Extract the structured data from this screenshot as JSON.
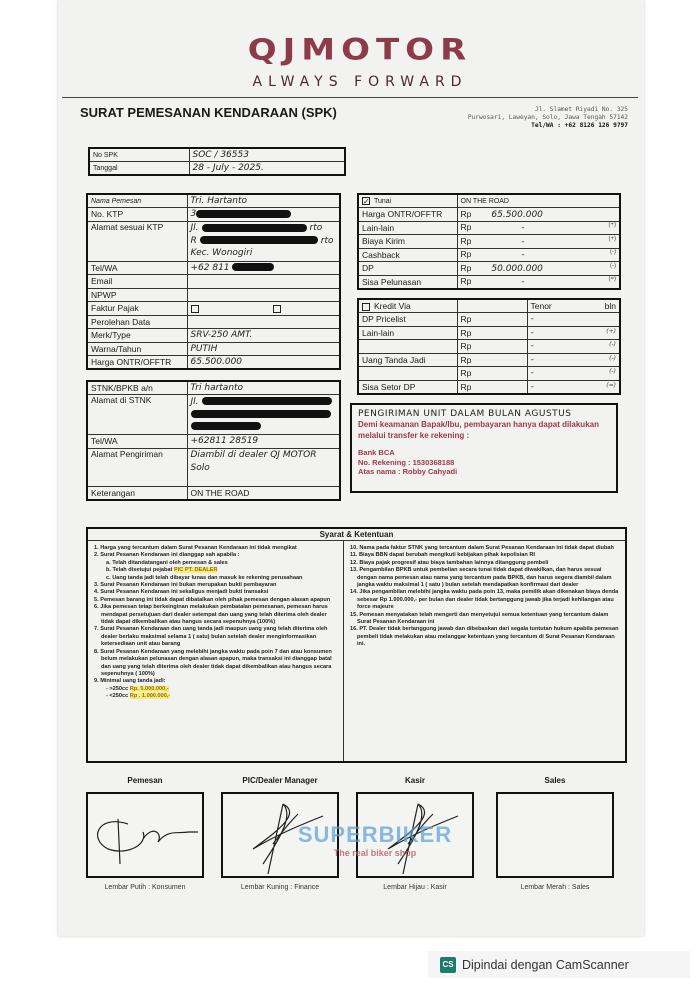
{
  "header": {
    "brand": "QJMOTOR",
    "tagline": "ALWAYS FORWARD",
    "title": "SURAT PEMESANAN KENDARAAN (SPK)",
    "address": [
      "Jl. Slamet Riyadi No. 325",
      "Purwosari, Laweyan, Solo, Jawa Tengah 57142",
      "Tel/WA : +62 8126 126 9797"
    ]
  },
  "spk": [
    {
      "label": "No SPK",
      "value": "SOC / 36553"
    },
    {
      "label": "Tanggal",
      "value": "28 - July - 2025."
    }
  ],
  "customer": {
    "name_label": "Nama Pemesan",
    "name": "Tri. Hartanto",
    "ktp_label": "No. KTP",
    "ktp": "3",
    "address_label": "Alamat sesuai KTP",
    "address": [
      "Jl.",
      "R",
      "Kec. Wonogiri"
    ],
    "address_tail": [
      "rto",
      "rto"
    ],
    "tel_label": "Tel/WA",
    "tel": "+62 811",
    "email_label": "Email",
    "npwp_label": "NPWP",
    "faktur_label": "Faktur Pajak",
    "perolehan_label": "Perolehan Data",
    "merk_label": "Merk/Type",
    "merk": "SRV-250 AMT.",
    "warna_label": "Warna/Tahun",
    "warna": "PUTIH",
    "harga_label": "Harga ONTR/OFFTR",
    "harga": "65.500.000"
  },
  "cash": {
    "checked": true,
    "label": "Tunai",
    "header": "ON THE ROAD",
    "rows": [
      {
        "label": "Harga ONTR/OFFTR",
        "cur": "Rp",
        "value": "65.500.000",
        "sign": ""
      },
      {
        "label": "Lain-lain",
        "cur": "Rp",
        "value": "-",
        "sign": "(+)"
      },
      {
        "label": "Biaya Kirim",
        "cur": "Rp",
        "value": "-",
        "sign": "(+)"
      },
      {
        "label": "Cashback",
        "cur": "Rp",
        "value": "-",
        "sign": "(-)"
      },
      {
        "label": "DP",
        "cur": "Rp",
        "value": "50.000.000",
        "sign": "(-)"
      },
      {
        "label": "Sisa Pelunasan",
        "cur": "Rp",
        "value": "-",
        "sign": "(=)"
      }
    ]
  },
  "credit": {
    "checked": false,
    "label": "Kredit Via",
    "tenor": "Tenor",
    "unit": "bln",
    "rows": [
      {
        "label": "DP Pricelist",
        "cur": "Rp",
        "value": "-",
        "sign": ""
      },
      {
        "label": "Lain-lain",
        "cur": "Rp",
        "value": "-",
        "sign": "(+)"
      },
      {
        "label": "",
        "cur": "Rp",
        "value": "-",
        "sign": "(-)"
      },
      {
        "label": "Uang Tanda Jadi",
        "cur": "Rp",
        "value": "-",
        "sign": "(-)"
      },
      {
        "label": "",
        "cur": "Rp",
        "value": "-",
        "sign": "(-)"
      },
      {
        "label": "Sisa Setor DP",
        "cur": "Rp",
        "value": "-",
        "sign": "(=)"
      }
    ]
  },
  "stnk": {
    "name_label": "STNK/BPKB a/n",
    "name": "Tri hartanto",
    "address_label": "Alamat di STNK",
    "address": "Jl.",
    "tel_label": "Tel/WA",
    "tel": "+62811 28519",
    "delivery_label": "Alamat Pengiriman",
    "delivery": [
      "Diambil di dealer QJ MOTOR",
      "Solo"
    ],
    "note_label": "Keterangan",
    "note": "ON THE ROAD"
  },
  "notice": {
    "handwritten": "PENGIRIMAN UNIT DALAM BULAN AGUSTUS",
    "message": "Demi keamanan Bapak/Ibu, pembayaran hanya dapat dilakukan melalui transfer ke rekening :",
    "bank": "Bank BCA",
    "account": "No. Rekening : 1530368188",
    "holder": "Atas nama : Robby Cahyadi"
  },
  "terms": {
    "title": "Syarat & Ketentuan",
    "left": [
      {
        "t": "1. Harga yang tercantum dalam Surat Pesanan Kendaraan ini tidak mengikat"
      },
      {
        "t": "2. Surat Pesanan Kendaraan ini dianggap sah apabila :"
      },
      {
        "s": "a. Telah ditandatangani oleh pemesan & sales"
      },
      {
        "s": "b. Telah disetujui pejabat ",
        "h": "PIC PT. DEALER"
      },
      {
        "s": "c. Uang tanda jadi telah dibayar lunas dan masuk ke rekening perusahaan"
      },
      {
        "t": "3. Surat Pesanan Kendaraan ini bukan merupakan bukti pembayaran"
      },
      {
        "t": "4. Surat Pesanan Kendaraan ini sekaligus menjadi bukti transaksi"
      },
      {
        "t": "5. Pemesan barang ini tidak dapat dibatalkan oleh pihak pemesan dengan alasan apapun"
      },
      {
        "t": "6. Jika pemesan tetap berkeinginan melakukan pembatalan pemesanan, pemesan harus mendapat persetujuan dari dealer setempat dan uang yang telah diterima oleh dealer tidak dapat dikembalikan atau hangus secara sepenuhnya (100%)"
      },
      {
        "t": "7. Surat Pesanan Kendaraan dan uang tanda jadi maupun uang yang telah diterima oleh dealer berlaku maksimal selama 1 ( satu) bulan setelah dealer menginformasikan ketersediaan unit atau barang"
      },
      {
        "t": "8. Surat Pesanan Kendaraan yang melebihi jangka waktu pada poin 7 dan atau konsumen belum melakukan pelunasan dengan alasan apapun, maka transaksi ini dianggap batal dan uang yang telah diterima oleh dealer tidak dapat dikembalikan atau hangus secara sepenuhnya ( 100%)"
      },
      {
        "t": "9. Minimal uang tanda jadi:"
      },
      {
        "s": "- >250cc ",
        "h": "Rp. 5.000.000,-"
      },
      {
        "s": "- <250cc ",
        "h": "Rp . 1.000.000,-"
      }
    ],
    "right": [
      {
        "t": "10. Nama pada faktur STNK yang tercantum dalam Surat Pesanan Kendaraan ini tidak dapat diubah"
      },
      {
        "t": "11. Biaya BBN dapat berubah mengikuti kebijakan pihak kepolisian RI"
      },
      {
        "t": "12. Biaya pajak progresif atau biaya tambahan lainnya ditanggung pembeli"
      },
      {
        "t": "13. Pengambilan BPKB untuk pembelian secara tunai tidak dapat diwakilkan, dan harus sesuai dengan nama pemesan atau nama yang tercantum pada BPKB, dan harus segera diambil dalam jangka waktu maksimal 1 ( satu ) bulan setelah mendapatkan konfirmasi dari dealer"
      },
      {
        "t": "14. Jika pengambilan melebihi jangka waktu pada poin 13, maka pemilik akan dikenakan biaya denda sebesar Rp 1.000.000,- per bulan dan dealer tidak bertanggung jawab jika terjadi kehilangan atau force majeure"
      },
      {
        "t": "15. Pemesan menyatakan telah mengerti dan menyetujui semua ketentuan yang tercantum dalam Surat Pesanan Kendaraan ini"
      },
      {
        "t": "16. PT. Dealer tidak bertanggung jawab dan dibebaskan dari segala tuntutan hukum apabila pemesan pembeli tidak melakukan atau melanggar ketentuan yang tercantum di Surat Pesanan Kendaraan ini."
      }
    ]
  },
  "signatures": [
    {
      "label": "Pemesan",
      "caption": "Lembar Putih : Konsumen",
      "signed": true
    },
    {
      "label": "PIC/Dealer Manager",
      "caption": "Lembar Kuning : Finance",
      "signed": true
    },
    {
      "label": "Kasir",
      "caption": "Lembar Hijau : Kasir",
      "signed": true
    },
    {
      "label": "Sales",
      "caption": "Lembar Merah : Sales",
      "signed": false
    }
  ],
  "stamp": {
    "brand": "SUPERBIKER",
    "slogan": "The real biker shop",
    "name": "Stanley"
  },
  "scanner": {
    "icon": "CS",
    "text": "Dipindai dengan CamScanner"
  }
}
